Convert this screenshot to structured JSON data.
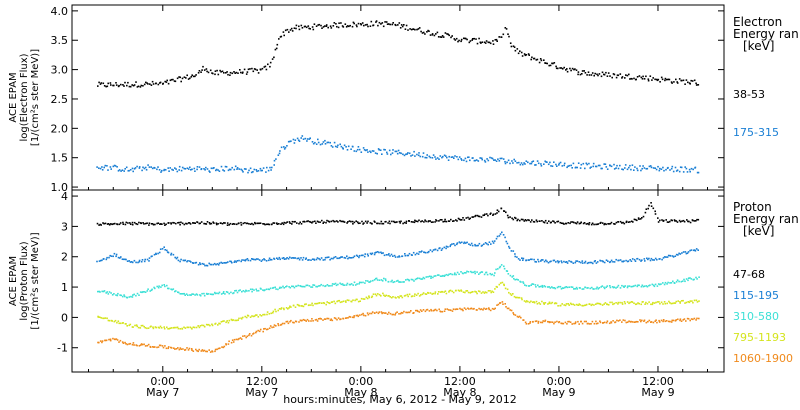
{
  "chart_data": [
    {
      "type": "scatter",
      "panel": "top",
      "ylabel_lines": [
        "ACE EPAM",
        "log(Electron Flux)",
        "[1/(cm²s ster MeV)]"
      ],
      "ylim": [
        0.95,
        4.1
      ],
      "yticks": [
        1.0,
        1.5,
        2.0,
        2.5,
        3.0,
        3.5,
        4.0
      ],
      "ytick_labels": [
        "1.0",
        "1.5",
        "2.0",
        "2.5",
        "3.0",
        "3.5",
        "4.0"
      ],
      "legend_title_lines": [
        "Electron",
        "Energy ran",
        "[keV]"
      ],
      "series": [
        {
          "name": "38-53",
          "color": "#000000",
          "points": [
            [
              -8,
              2.75
            ],
            [
              -4,
              2.76
            ],
            [
              0,
              2.77
            ],
            [
              2,
              2.85
            ],
            [
              4,
              2.92
            ],
            [
              5,
              3.05
            ],
            [
              6,
              2.95
            ],
            [
              8,
              2.96
            ],
            [
              10,
              2.98
            ],
            [
              12,
              3.0
            ],
            [
              13,
              3.1
            ],
            [
              14,
              3.55
            ],
            [
              15,
              3.68
            ],
            [
              16,
              3.72
            ],
            [
              18,
              3.74
            ],
            [
              20,
              3.76
            ],
            [
              22,
              3.78
            ],
            [
              24,
              3.78
            ],
            [
              26,
              3.8
            ],
            [
              28,
              3.78
            ],
            [
              30,
              3.72
            ],
            [
              32,
              3.65
            ],
            [
              34,
              3.6
            ],
            [
              36,
              3.52
            ],
            [
              38,
              3.5
            ],
            [
              40,
              3.48
            ],
            [
              41,
              3.55
            ],
            [
              41.5,
              3.75
            ],
            [
              42,
              3.45
            ],
            [
              43,
              3.3
            ],
            [
              45,
              3.2
            ],
            [
              47,
              3.1
            ],
            [
              49,
              3.02
            ],
            [
              50,
              2.98
            ],
            [
              52,
              2.94
            ],
            [
              54,
              2.92
            ],
            [
              56,
              2.9
            ],
            [
              58,
              2.88
            ],
            [
              60,
              2.85
            ],
            [
              62,
              2.82
            ],
            [
              64,
              2.8
            ],
            [
              65,
              2.78
            ]
          ]
        },
        {
          "name": "175-315",
          "color": "#1a7fd4",
          "points": [
            [
              -8,
              1.35
            ],
            [
              -6,
              1.34
            ],
            [
              -4,
              1.3
            ],
            [
              -2,
              1.35
            ],
            [
              0,
              1.3
            ],
            [
              2,
              1.32
            ],
            [
              4,
              1.33
            ],
            [
              6,
              1.3
            ],
            [
              8,
              1.34
            ],
            [
              10,
              1.3
            ],
            [
              12,
              1.3
            ],
            [
              13,
              1.32
            ],
            [
              14,
              1.6
            ],
            [
              15,
              1.75
            ],
            [
              16,
              1.82
            ],
            [
              17,
              1.85
            ],
            [
              18,
              1.8
            ],
            [
              20,
              1.75
            ],
            [
              22,
              1.7
            ],
            [
              24,
              1.65
            ],
            [
              26,
              1.62
            ],
            [
              28,
              1.6
            ],
            [
              30,
              1.58
            ],
            [
              32,
              1.55
            ],
            [
              34,
              1.52
            ],
            [
              36,
              1.5
            ],
            [
              38,
              1.48
            ],
            [
              40,
              1.48
            ],
            [
              42,
              1.45
            ],
            [
              44,
              1.43
            ],
            [
              46,
              1.42
            ],
            [
              48,
              1.4
            ],
            [
              50,
              1.38
            ],
            [
              52,
              1.37
            ],
            [
              54,
              1.36
            ],
            [
              56,
              1.35
            ],
            [
              58,
              1.34
            ],
            [
              60,
              1.33
            ],
            [
              62,
              1.32
            ],
            [
              64,
              1.31
            ],
            [
              65,
              1.3
            ]
          ]
        }
      ]
    },
    {
      "type": "scatter",
      "panel": "bottom",
      "ylabel_lines": [
        "ACE EPAM",
        "log(Proton Flux)",
        "[1/(cm²s ster MeV)]"
      ],
      "ylim": [
        -1.8,
        4.2
      ],
      "yticks": [
        -1,
        0,
        1,
        2,
        3,
        4
      ],
      "ytick_labels": [
        "-1",
        "0",
        "1",
        "2",
        "3",
        "4"
      ],
      "legend_title_lines": [
        "Proton",
        "Energy ran",
        "[keV]"
      ],
      "series": [
        {
          "name": "47-68",
          "color": "#000000",
          "points": [
            [
              -8,
              3.1
            ],
            [
              -4,
              3.12
            ],
            [
              0,
              3.1
            ],
            [
              4,
              3.15
            ],
            [
              8,
              3.1
            ],
            [
              12,
              3.12
            ],
            [
              16,
              3.15
            ],
            [
              20,
              3.18
            ],
            [
              24,
              3.15
            ],
            [
              28,
              3.15
            ],
            [
              32,
              3.2
            ],
            [
              36,
              3.25
            ],
            [
              38,
              3.35
            ],
            [
              40,
              3.45
            ],
            [
              41,
              3.6
            ],
            [
              42,
              3.3
            ],
            [
              44,
              3.2
            ],
            [
              48,
              3.15
            ],
            [
              52,
              3.12
            ],
            [
              56,
              3.15
            ],
            [
              58,
              3.3
            ],
            [
              59,
              3.8
            ],
            [
              60,
              3.2
            ],
            [
              64,
              3.2
            ],
            [
              65,
              3.22
            ]
          ]
        },
        {
          "name": "115-195",
          "color": "#1a7fd4",
          "points": [
            [
              -8,
              1.85
            ],
            [
              -6,
              2.1
            ],
            [
              -4,
              1.85
            ],
            [
              -2,
              1.9
            ],
            [
              0,
              2.3
            ],
            [
              2,
              1.9
            ],
            [
              4,
              1.8
            ],
            [
              6,
              1.75
            ],
            [
              8,
              1.85
            ],
            [
              10,
              1.95
            ],
            [
              12,
              1.92
            ],
            [
              14,
              1.95
            ],
            [
              16,
              1.97
            ],
            [
              18,
              1.95
            ],
            [
              20,
              1.97
            ],
            [
              22,
              2.0
            ],
            [
              24,
              2.05
            ],
            [
              26,
              2.15
            ],
            [
              28,
              2.05
            ],
            [
              30,
              2.1
            ],
            [
              32,
              2.2
            ],
            [
              34,
              2.3
            ],
            [
              36,
              2.5
            ],
            [
              38,
              2.4
            ],
            [
              40,
              2.5
            ],
            [
              41,
              2.8
            ],
            [
              42,
              2.3
            ],
            [
              43,
              1.95
            ],
            [
              45,
              1.9
            ],
            [
              48,
              1.85
            ],
            [
              52,
              1.85
            ],
            [
              56,
              1.9
            ],
            [
              60,
              1.95
            ],
            [
              64,
              2.2
            ],
            [
              65,
              2.3
            ]
          ]
        },
        {
          "name": "310-580",
          "color": "#3de0d6",
          "points": [
            [
              -8,
              0.9
            ],
            [
              -6,
              0.8
            ],
            [
              -4,
              0.7
            ],
            [
              -2,
              0.9
            ],
            [
              0,
              1.1
            ],
            [
              2,
              0.8
            ],
            [
              4,
              0.75
            ],
            [
              6,
              0.8
            ],
            [
              8,
              0.85
            ],
            [
              10,
              0.9
            ],
            [
              12,
              0.95
            ],
            [
              14,
              1.0
            ],
            [
              16,
              1.05
            ],
            [
              18,
              1.05
            ],
            [
              20,
              1.1
            ],
            [
              22,
              1.12
            ],
            [
              24,
              1.15
            ],
            [
              26,
              1.3
            ],
            [
              28,
              1.2
            ],
            [
              30,
              1.25
            ],
            [
              32,
              1.35
            ],
            [
              34,
              1.4
            ],
            [
              36,
              1.5
            ],
            [
              38,
              1.5
            ],
            [
              40,
              1.45
            ],
            [
              41,
              1.8
            ],
            [
              42,
              1.4
            ],
            [
              44,
              1.1
            ],
            [
              46,
              1.05
            ],
            [
              48,
              1.0
            ],
            [
              52,
              1.0
            ],
            [
              56,
              1.05
            ],
            [
              60,
              1.1
            ],
            [
              64,
              1.3
            ],
            [
              65,
              1.35
            ]
          ]
        },
        {
          "name": "795-1193",
          "color": "#d4e41e",
          "points": [
            [
              -8,
              0.05
            ],
            [
              -6,
              -0.1
            ],
            [
              -4,
              -0.25
            ],
            [
              -2,
              -0.3
            ],
            [
              0,
              -0.3
            ],
            [
              2,
              -0.35
            ],
            [
              4,
              -0.3
            ],
            [
              6,
              -0.2
            ],
            [
              8,
              -0.1
            ],
            [
              10,
              0.05
            ],
            [
              12,
              0.1
            ],
            [
              14,
              0.3
            ],
            [
              16,
              0.4
            ],
            [
              18,
              0.45
            ],
            [
              20,
              0.5
            ],
            [
              22,
              0.55
            ],
            [
              24,
              0.6
            ],
            [
              26,
              0.8
            ],
            [
              28,
              0.7
            ],
            [
              30,
              0.75
            ],
            [
              32,
              0.8
            ],
            [
              34,
              0.85
            ],
            [
              36,
              0.9
            ],
            [
              38,
              0.85
            ],
            [
              40,
              0.9
            ],
            [
              41,
              1.2
            ],
            [
              42,
              0.8
            ],
            [
              44,
              0.55
            ],
            [
              46,
              0.5
            ],
            [
              48,
              0.45
            ],
            [
              52,
              0.45
            ],
            [
              56,
              0.5
            ],
            [
              60,
              0.5
            ],
            [
              64,
              0.55
            ],
            [
              65,
              0.55
            ]
          ]
        },
        {
          "name": "1060-1900",
          "color": "#f08a1c",
          "points": [
            [
              -8,
              -0.8
            ],
            [
              -6,
              -0.7
            ],
            [
              -4,
              -0.85
            ],
            [
              -2,
              -0.9
            ],
            [
              0,
              -0.95
            ],
            [
              2,
              -1.0
            ],
            [
              4,
              -1.05
            ],
            [
              6,
              -1.1
            ],
            [
              8,
              -0.8
            ],
            [
              10,
              -0.6
            ],
            [
              12,
              -0.4
            ],
            [
              14,
              -0.2
            ],
            [
              16,
              -0.1
            ],
            [
              18,
              -0.05
            ],
            [
              20,
              -0.05
            ],
            [
              22,
              0.0
            ],
            [
              24,
              0.1
            ],
            [
              26,
              0.2
            ],
            [
              28,
              0.15
            ],
            [
              30,
              0.2
            ],
            [
              32,
              0.25
            ],
            [
              34,
              0.25
            ],
            [
              36,
              0.3
            ],
            [
              38,
              0.3
            ],
            [
              40,
              0.3
            ],
            [
              41,
              0.55
            ],
            [
              42,
              0.25
            ],
            [
              44,
              -0.15
            ],
            [
              46,
              -0.1
            ],
            [
              48,
              -0.15
            ],
            [
              52,
              -0.15
            ],
            [
              56,
              -0.1
            ],
            [
              60,
              -0.1
            ],
            [
              64,
              -0.05
            ],
            [
              65,
              -0.05
            ]
          ]
        }
      ]
    }
  ],
  "x_axis": {
    "xlim": [
      -11,
      68
    ],
    "ticks": [
      {
        "x": 0,
        "time": "0:00",
        "date": "May 7"
      },
      {
        "x": 12,
        "time": "12:00",
        "date": "May 7"
      },
      {
        "x": 24,
        "time": "0:00",
        "date": "May 8"
      },
      {
        "x": 36,
        "time": "12:00",
        "date": "May 8"
      },
      {
        "x": 48,
        "time": "0:00",
        "date": "May 9"
      },
      {
        "x": 60,
        "time": "12:00",
        "date": "May 9"
      }
    ],
    "label": "hours:minutes, May  6, 2012 - May  9, 2012"
  }
}
